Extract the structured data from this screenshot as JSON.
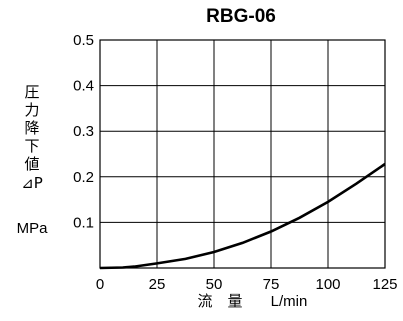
{
  "chart_data": {
    "type": "line",
    "title": "RBG-06",
    "xlabel": "流　量",
    "xunit": "L/min",
    "ylabel_chars": [
      "圧",
      "力",
      "降",
      "下",
      "値"
    ],
    "ylabel_symbol": "⊿P",
    "yunit": "MPa",
    "xlim": [
      0,
      125
    ],
    "ylim": [
      0,
      0.5
    ],
    "x_ticks": [
      "0",
      "25",
      "50",
      "75",
      "100",
      "125"
    ],
    "y_ticks": [
      "0.1",
      "0.2",
      "0.3",
      "0.4",
      "0.5"
    ],
    "grid": true,
    "series": [
      {
        "x": [
          0,
          10,
          15,
          25,
          37.5,
          50,
          62.5,
          75,
          87.5,
          100,
          112.5,
          125
        ],
        "y": [
          0,
          0.001,
          0.003,
          0.01,
          0.02,
          0.035,
          0.055,
          0.08,
          0.11,
          0.145,
          0.185,
          0.228
        ]
      }
    ]
  }
}
